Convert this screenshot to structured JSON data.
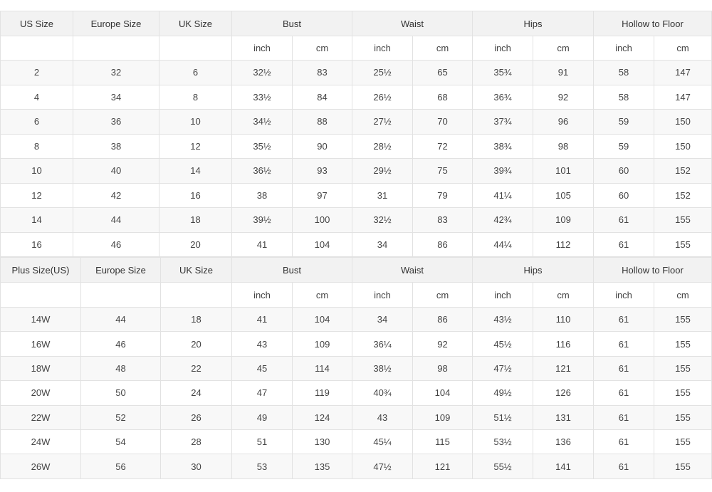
{
  "tables": [
    {
      "headers": [
        "US Size",
        "Europe Size",
        "UK Size",
        "Bust",
        "Waist",
        "Hips",
        "Hollow to Floor"
      ],
      "units": [
        "inch",
        "cm",
        "inch",
        "cm",
        "inch",
        "cm",
        "inch",
        "cm"
      ],
      "rows": [
        [
          2,
          32,
          6,
          "32½",
          83,
          "25½",
          65,
          "35¾",
          91,
          58,
          147
        ],
        [
          4,
          34,
          8,
          "33½",
          84,
          "26½",
          68,
          "36¾",
          92,
          58,
          147
        ],
        [
          6,
          36,
          10,
          "34½",
          88,
          "27½",
          70,
          "37¾",
          96,
          59,
          150
        ],
        [
          8,
          38,
          12,
          "35½",
          90,
          "28½",
          72,
          "38¾",
          98,
          59,
          150
        ],
        [
          10,
          40,
          14,
          "36½",
          93,
          "29½",
          75,
          "39¾",
          101,
          60,
          152
        ],
        [
          12,
          42,
          16,
          38,
          97,
          31,
          79,
          "41¼",
          105,
          60,
          152
        ],
        [
          14,
          44,
          18,
          "39½",
          100,
          "32½",
          83,
          "42¾",
          109,
          61,
          155
        ],
        [
          16,
          46,
          20,
          41,
          104,
          34,
          86,
          "44¼",
          112,
          61,
          155
        ]
      ]
    },
    {
      "headers": [
        "Plus Size(US)",
        "Europe Size",
        "UK Size",
        "Bust",
        "Waist",
        "Hips",
        "Hollow to Floor"
      ],
      "units": [
        "inch",
        "cm",
        "inch",
        "cm",
        "inch",
        "cm",
        "inch",
        "cm"
      ],
      "rows": [
        [
          "14W",
          44,
          18,
          41,
          104,
          34,
          86,
          "43½",
          110,
          61,
          155
        ],
        [
          "16W",
          46,
          20,
          43,
          109,
          "36¼",
          92,
          "45½",
          116,
          61,
          155
        ],
        [
          "18W",
          48,
          22,
          45,
          114,
          "38½",
          98,
          "47½",
          121,
          61,
          155
        ],
        [
          "20W",
          50,
          24,
          47,
          119,
          "40¾",
          104,
          "49½",
          126,
          61,
          155
        ],
        [
          "22W",
          52,
          26,
          49,
          124,
          43,
          109,
          "51½",
          131,
          61,
          155
        ],
        [
          "24W",
          54,
          28,
          51,
          130,
          "45¼",
          115,
          "53½",
          136,
          61,
          155
        ],
        [
          "26W",
          56,
          30,
          53,
          135,
          "47½",
          121,
          "55½",
          141,
          61,
          155
        ]
      ]
    }
  ]
}
